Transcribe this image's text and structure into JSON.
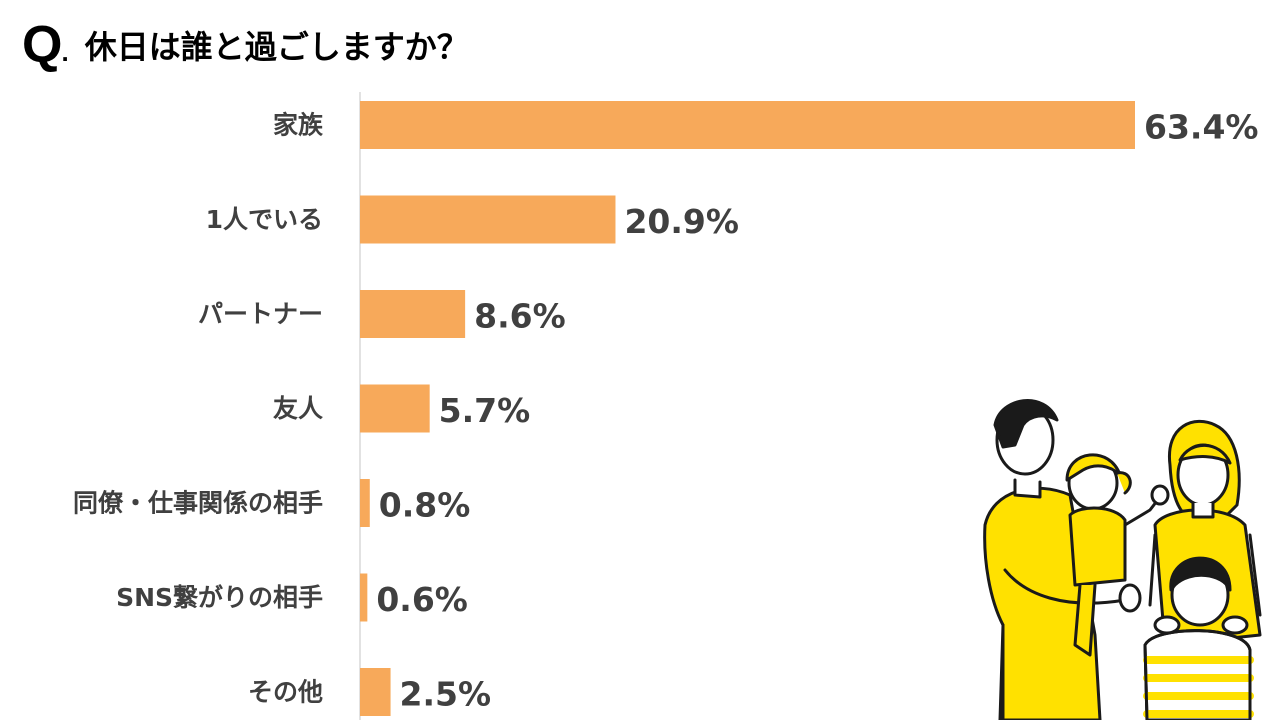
{
  "title": {
    "q": "Q",
    "dot": ".",
    "text": "休日は誰と過ごしますか？"
  },
  "colors": {
    "bar": "#F7A95A",
    "axis": "#D9D9D9",
    "label": "#404040",
    "accent_yellow": "#FFE100",
    "outline": "#1a1a1a"
  },
  "chart_data": {
    "type": "bar",
    "orientation": "horizontal",
    "categories": [
      "家族",
      "1人でいる",
      "パートナー",
      "友人",
      "同僚・仕事関係の相手",
      "SNS繋がりの相手",
      "その他"
    ],
    "values": [
      63.4,
      20.9,
      8.6,
      5.7,
      0.8,
      0.6,
      2.5
    ],
    "value_labels": [
      "63.4%",
      "20.9%",
      "8.6%",
      "5.7%",
      "0.8%",
      "0.6%",
      "2.5%"
    ],
    "unit": "%",
    "xlim": [
      0,
      63.4
    ],
    "grid": false,
    "legend": "none"
  },
  "illustration": {
    "icon": "family-illustration-icon"
  }
}
